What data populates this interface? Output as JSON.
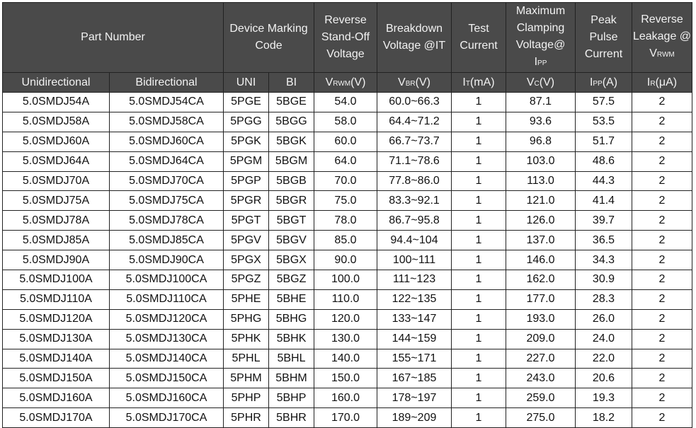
{
  "header": {
    "part_number": "Part Number",
    "marking": "Device Marking Code",
    "vrwm": "Reverse Stand-Off Voltage",
    "vbr": "Breakdown Voltage @IT",
    "it": "Test Current",
    "vc": [
      "Maximum Clamping Voltage@",
      "PP"
    ],
    "ipp": "Peak Pulse Current",
    "ir": [
      "Reverse Leakage @ V",
      "RWM"
    ]
  },
  "subheader": {
    "uni_part": "Unidirectional",
    "bi_part": "Bidirectional",
    "uni": "UNI",
    "bi": "BI",
    "vrwm": [
      "V",
      "RWM",
      "(V)"
    ],
    "vbr": [
      "V",
      "BR",
      "(V)"
    ],
    "it": [
      "I",
      "T",
      "(mA)"
    ],
    "vc": [
      "V",
      "C",
      "(V)"
    ],
    "ipp": [
      "I",
      "PP",
      "(A)"
    ],
    "ir": [
      "I",
      "R",
      "(μA)"
    ]
  },
  "rows": [
    [
      "5.0SMDJ54A",
      "5.0SMDJ54CA",
      "5PGE",
      "5BGE",
      "54.0",
      "60.0~66.3",
      "1",
      "87.1",
      "57.5",
      "2"
    ],
    [
      "5.0SMDJ58A",
      "5.0SMDJ58CA",
      "5PGG",
      "5BGG",
      "58.0",
      "64.4~71.2",
      "1",
      "93.6",
      "53.5",
      "2"
    ],
    [
      "5.0SMDJ60A",
      "5.0SMDJ60CA",
      "5PGK",
      "5BGK",
      "60.0",
      "66.7~73.7",
      "1",
      "96.8",
      "51.7",
      "2"
    ],
    [
      "5.0SMDJ64A",
      "5.0SMDJ64CA",
      "5PGM",
      "5BGM",
      "64.0",
      "71.1~78.6",
      "1",
      "103.0",
      "48.6",
      "2"
    ],
    [
      "5.0SMDJ70A",
      "5.0SMDJ70CA",
      "5PGP",
      "5BGB",
      "70.0",
      "77.8~86.0",
      "1",
      "113.0",
      "44.3",
      "2"
    ],
    [
      "5.0SMDJ75A",
      "5.0SMDJ75CA",
      "5PGR",
      "5BGR",
      "75.0",
      "83.3~92.1",
      "1",
      "121.0",
      "41.4",
      "2"
    ],
    [
      "5.0SMDJ78A",
      "5.0SMDJ78CA",
      "5PGT",
      "5BGT",
      "78.0",
      "86.7~95.8",
      "1",
      "126.0",
      "39.7",
      "2"
    ],
    [
      "5.0SMDJ85A",
      "5.0SMDJ85CA",
      "5PGV",
      "5BGV",
      "85.0",
      "94.4~104",
      "1",
      "137.0",
      "36.5",
      "2"
    ],
    [
      "5.0SMDJ90A",
      "5.0SMDJ90CA",
      "5PGX",
      "5BGX",
      "90.0",
      "100~111",
      "1",
      "146.0",
      "34.3",
      "2"
    ],
    [
      "5.0SMDJ100A",
      "5.0SMDJ100CA",
      "5PGZ",
      "5BGZ",
      "100.0",
      "111~123",
      "1",
      "162.0",
      "30.9",
      "2"
    ],
    [
      "5.0SMDJ110A",
      "5.0SMDJ110CA",
      "5PHE",
      "5BHE",
      "110.0",
      "122~135",
      "1",
      "177.0",
      "28.3",
      "2"
    ],
    [
      "5.0SMDJ120A",
      "5.0SMDJ120CA",
      "5PHG",
      "5BHG",
      "120.0",
      "133~147",
      "1",
      "193.0",
      "26.0",
      "2"
    ],
    [
      "5.0SMDJ130A",
      "5.0SMDJ130CA",
      "5PHK",
      "5BHK",
      "130.0",
      "144~159",
      "1",
      "209.0",
      "24.0",
      "2"
    ],
    [
      "5.0SMDJ140A",
      "5.0SMDJ140CA",
      "5PHL",
      "5BHL",
      "140.0",
      "155~171",
      "1",
      "227.0",
      "22.0",
      "2"
    ],
    [
      "5.0SMDJ150A",
      "5.0SMDJ150CA",
      "5PHM",
      "5BHM",
      "150.0",
      "167~185",
      "1",
      "243.0",
      "20.6",
      "2"
    ],
    [
      "5.0SMDJ160A",
      "5.0SMDJ160CA",
      "5PHP",
      "5BHP",
      "160.0",
      "178~197",
      "1",
      "259.0",
      "19.3",
      "2"
    ],
    [
      "5.0SMDJ170A",
      "5.0SMDJ170CA",
      "5PHR",
      "5BHR",
      "170.0",
      "189~209",
      "1",
      "275.0",
      "18.2",
      "2"
    ]
  ]
}
